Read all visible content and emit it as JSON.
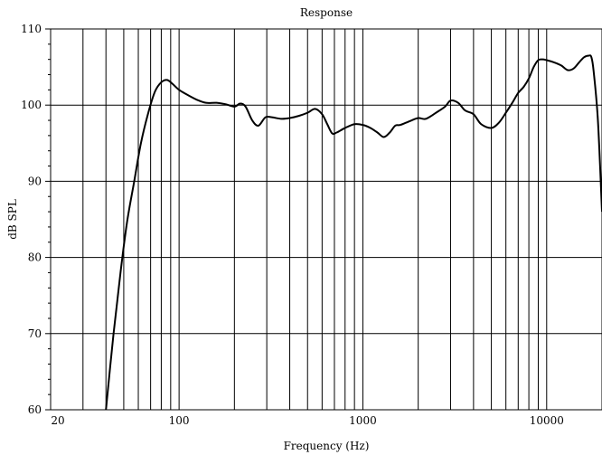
{
  "chart_data": {
    "type": "line",
    "title": "Response",
    "xlabel": "Frequency (Hz)",
    "ylabel": "dB SPL",
    "x_scale": "log",
    "xlim": [
      20,
      20000
    ],
    "ylim": [
      60,
      110
    ],
    "x_tick_labels": [
      {
        "value": 20,
        "label": "20"
      },
      {
        "value": 100,
        "label": "100"
      },
      {
        "value": 1000,
        "label": "1000"
      },
      {
        "value": 10000,
        "label": "10000"
      }
    ],
    "y_tick_labels": [
      {
        "value": 60,
        "label": "60"
      },
      {
        "value": 70,
        "label": "70"
      },
      {
        "value": 80,
        "label": "80"
      },
      {
        "value": 90,
        "label": "90"
      },
      {
        "value": 100,
        "label": "100"
      },
      {
        "value": 110,
        "label": "110"
      }
    ],
    "grid": {
      "x": "vertical lines at every 1-2-3-...-9 decade step",
      "y": "horizontal lines every 10 dB"
    },
    "series": [
      {
        "color": "#000000",
        "x": [
          40,
          44,
          48,
          52,
          57,
          62,
          68,
          74,
          80,
          86,
          92,
          100,
          110,
          125,
          140,
          160,
          180,
          200,
          215,
          230,
          250,
          270,
          295,
          320,
          360,
          400,
          450,
          500,
          550,
          600,
          640,
          680,
          720,
          800,
          900,
          1000,
          1100,
          1200,
          1300,
          1400,
          1500,
          1600,
          1800,
          2000,
          2200,
          2500,
          2800,
          3000,
          3300,
          3600,
          4000,
          4400,
          5000,
          5500,
          6000,
          6500,
          7000,
          7500,
          8000,
          8500,
          9000,
          9500,
          10000,
          11000,
          12000,
          13000,
          14000,
          15000,
          16000,
          17000,
          17500,
          18000,
          19000,
          20000
        ],
        "y": [
          60.0,
          70.0,
          78.0,
          84.5,
          90.0,
          95.0,
          99.0,
          101.8,
          103.0,
          103.3,
          102.8,
          102.0,
          101.4,
          100.7,
          100.3,
          100.3,
          100.1,
          99.8,
          100.2,
          99.8,
          98.0,
          97.3,
          98.4,
          98.4,
          98.2,
          98.3,
          98.6,
          99.0,
          99.5,
          98.8,
          97.5,
          96.3,
          96.4,
          97.0,
          97.5,
          97.4,
          97.0,
          96.4,
          95.8,
          96.4,
          97.3,
          97.4,
          97.9,
          98.3,
          98.2,
          99.0,
          99.8,
          100.6,
          100.3,
          99.3,
          98.8,
          97.5,
          97.0,
          97.7,
          99.0,
          100.3,
          101.6,
          102.4,
          103.5,
          105.0,
          105.9,
          106.0,
          105.9,
          105.6,
          105.2,
          104.6,
          104.8,
          105.6,
          106.3,
          106.5,
          106.3,
          104.5,
          98.0,
          86.0
        ]
      }
    ]
  }
}
